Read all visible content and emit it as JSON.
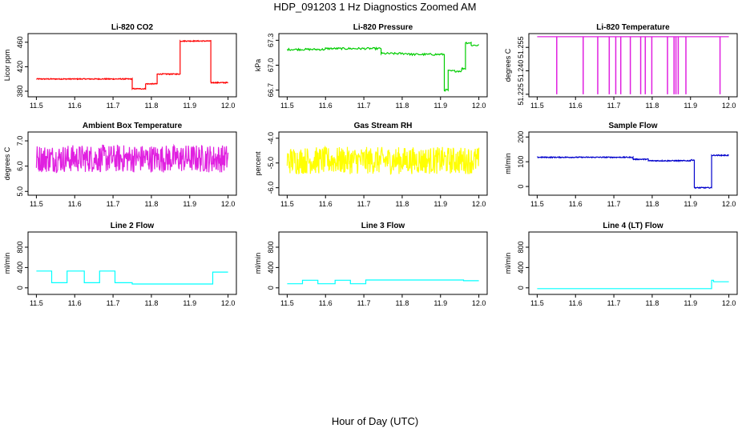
{
  "figure": {
    "title": "HDP_091203  1 Hz Diagnostics Zoomed AM",
    "xlabel": "Hour of Day (UTC)"
  },
  "chart_data": [
    {
      "type": "line",
      "title": "Li-820 CO2",
      "ylabel": "Licor ppm",
      "color": "#ff0000",
      "xlim": [
        11.5,
        12.0
      ],
      "ylim": [
        375,
        470
      ],
      "xticks": [
        "11.5",
        "11.6",
        "11.7",
        "11.8",
        "11.9",
        "12.0"
      ],
      "yticks": [
        "380",
        "420",
        "460"
      ],
      "noise": 0.8,
      "spikes": [],
      "segments": [
        [
          11.5,
          11.75,
          400
        ],
        [
          11.75,
          11.785,
          384
        ],
        [
          11.785,
          11.815,
          392
        ],
        [
          11.815,
          11.875,
          408
        ],
        [
          11.875,
          11.955,
          462
        ],
        [
          11.955,
          12.0,
          394
        ]
      ]
    },
    {
      "type": "line",
      "title": "Li-820 Pressure",
      "ylabel": "kPa",
      "color": "#00cc00",
      "xlim": [
        11.5,
        12.0
      ],
      "ylim": [
        66.65,
        67.35
      ],
      "xticks": [
        "11.5",
        "11.6",
        "11.7",
        "11.8",
        "11.9",
        "12.0"
      ],
      "yticks": [
        "66.7",
        "67.0",
        "67.3"
      ],
      "noise": 0.006,
      "spikes": [],
      "segments": [
        [
          11.5,
          11.6,
          67.19
        ],
        [
          11.6,
          11.745,
          67.2
        ],
        [
          11.745,
          11.82,
          67.14
        ],
        [
          11.82,
          11.91,
          67.13
        ],
        [
          11.91,
          11.92,
          66.7
        ],
        [
          11.92,
          11.955,
          66.93
        ],
        [
          11.955,
          11.965,
          66.96
        ],
        [
          11.965,
          11.98,
          67.27
        ],
        [
          11.98,
          12.0,
          67.24
        ]
      ]
    },
    {
      "type": "line",
      "title": "Li-820 Temperature",
      "ylabel": "degrees C",
      "color": "#e020e0",
      "xlim": [
        11.5,
        12.0
      ],
      "ylim": [
        51.225,
        51.2622
      ],
      "xticks": [
        "11.5",
        "11.6",
        "11.7",
        "11.8",
        "11.9",
        "12.0"
      ],
      "yticks": [
        "51.225",
        "51.240",
        "51.255"
      ],
      "noise": 0,
      "spikes_to": 51.225,
      "spikes": [
        11.551,
        11.62,
        11.658,
        11.688,
        11.705,
        11.718,
        11.743,
        11.77,
        11.782,
        11.799,
        11.84,
        11.857,
        11.862,
        11.868,
        11.888,
        11.977
      ],
      "segments": [
        [
          11.5,
          12.0,
          51.2618
        ]
      ]
    },
    {
      "type": "line",
      "title": "Ambient Box Temperature",
      "ylabel": "degrees C",
      "color": "#e020e0",
      "xlim": [
        11.5,
        12.0
      ],
      "ylim": [
        4.95,
        7.25
      ],
      "xticks": [
        "11.5",
        "11.6",
        "11.7",
        "11.8",
        "11.9",
        "12.0"
      ],
      "yticks": [
        "5.0",
        "6.0",
        "7.0"
      ],
      "noise": 0.55,
      "spikes": [],
      "segments": [
        [
          11.5,
          12.0,
          6.3
        ]
      ]
    },
    {
      "type": "line",
      "title": "Gas Stream RH",
      "ylabel": "percent",
      "color": "#ffff00",
      "xlim": [
        11.5,
        12.0
      ],
      "ylim": [
        -6.2,
        -3.85
      ],
      "xticks": [
        "11.5",
        "11.6",
        "11.7",
        "11.8",
        "11.9",
        "12.0"
      ],
      "yticks": [
        "-6.0",
        "-5.0",
        "-4.0"
      ],
      "noise": 0.55,
      "spikes": [],
      "segments": [
        [
          11.5,
          12.0,
          -4.9
        ]
      ]
    },
    {
      "type": "line",
      "title": "Sample Flow",
      "ylabel": "ml/min",
      "color": "#0000cc",
      "xlim": [
        11.5,
        12.0
      ],
      "ylim": [
        -25,
        210
      ],
      "xticks": [
        "11.5",
        "11.6",
        "11.7",
        "11.8",
        "11.9",
        "12.0"
      ],
      "yticks": [
        "0",
        "100",
        "200"
      ],
      "noise": 2,
      "spikes": [],
      "segments": [
        [
          11.5,
          11.75,
          118
        ],
        [
          11.75,
          11.79,
          110
        ],
        [
          11.79,
          11.9,
          104
        ],
        [
          11.9,
          11.91,
          107
        ],
        [
          11.91,
          11.955,
          -5
        ],
        [
          11.955,
          12.0,
          126
        ]
      ]
    },
    {
      "type": "line",
      "title": "Line 2 Flow",
      "ylabel": "ml/min",
      "color": "#00ffff",
      "xlim": [
        11.5,
        12.0
      ],
      "ylim": [
        -80,
        1050
      ],
      "xticks": [
        "11.5",
        "11.6",
        "11.7",
        "11.8",
        "11.9",
        "12.0"
      ],
      "yticks": [
        "0",
        "400",
        "800"
      ],
      "noise": 0,
      "spikes": [],
      "segments": [
        [
          11.5,
          11.54,
          330
        ],
        [
          11.54,
          11.58,
          100
        ],
        [
          11.58,
          11.625,
          330
        ],
        [
          11.625,
          11.665,
          100
        ],
        [
          11.665,
          11.705,
          330
        ],
        [
          11.705,
          11.75,
          100
        ],
        [
          11.75,
          11.96,
          75
        ],
        [
          11.96,
          12.0,
          310
        ]
      ]
    },
    {
      "type": "line",
      "title": "Line 3 Flow",
      "ylabel": "ml/min",
      "color": "#00ffff",
      "xlim": [
        11.5,
        12.0
      ],
      "ylim": [
        -80,
        1050
      ],
      "xticks": [
        "11.5",
        "11.6",
        "11.7",
        "11.8",
        "11.9",
        "12.0"
      ],
      "yticks": [
        "0",
        "400",
        "800"
      ],
      "noise": 0,
      "spikes": [],
      "segments": [
        [
          11.5,
          11.54,
          80
        ],
        [
          11.54,
          11.58,
          150
        ],
        [
          11.58,
          11.625,
          80
        ],
        [
          11.625,
          11.665,
          150
        ],
        [
          11.665,
          11.705,
          80
        ],
        [
          11.705,
          11.96,
          155
        ],
        [
          11.96,
          12.0,
          140
        ]
      ]
    },
    {
      "type": "line",
      "title": "Line 4 (LT) Flow",
      "ylabel": "ml/min",
      "color": "#00ffff",
      "xlim": [
        11.5,
        12.0
      ],
      "ylim": [
        -80,
        1050
      ],
      "xticks": [
        "11.5",
        "11.6",
        "11.7",
        "11.8",
        "11.9",
        "12.0"
      ],
      "yticks": [
        "0",
        "400",
        "800"
      ],
      "noise": 0,
      "spikes": [],
      "segments": [
        [
          11.5,
          11.955,
          -15
        ],
        [
          11.955,
          11.96,
          150
        ],
        [
          11.96,
          12.0,
          120
        ]
      ]
    }
  ]
}
